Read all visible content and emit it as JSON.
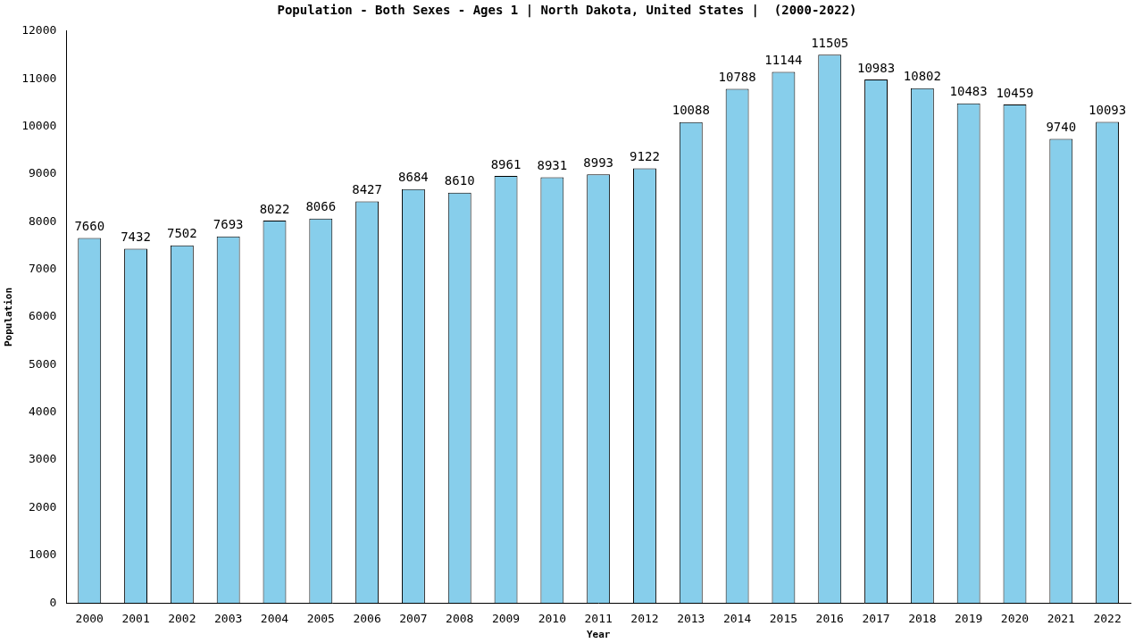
{
  "chart_data": {
    "type": "bar",
    "title": "Population - Both Sexes - Ages 1 | North Dakota, United States |  (2000-2022)",
    "x_label": "Year",
    "y_label": "Population",
    "categories": [
      "2000",
      "2001",
      "2002",
      "2003",
      "2004",
      "2005",
      "2006",
      "2007",
      "2008",
      "2009",
      "2010",
      "2011",
      "2012",
      "2013",
      "2014",
      "2015",
      "2016",
      "2017",
      "2018",
      "2019",
      "2020",
      "2021",
      "2022"
    ],
    "values": [
      7660,
      7432,
      7502,
      7693,
      8022,
      8066,
      8427,
      8684,
      8610,
      8961,
      8931,
      8993,
      9122,
      10088,
      10788,
      11144,
      11505,
      10983,
      10802,
      10483,
      10459,
      9740,
      10093
    ],
    "color": "#87ceeb",
    "ylim": [
      0,
      12000
    ],
    "yticks": [
      0,
      1000,
      2000,
      3000,
      4000,
      5000,
      6000,
      7000,
      8000,
      9000,
      10000,
      11000,
      12000
    ],
    "grid": false,
    "data_labels": true
  }
}
